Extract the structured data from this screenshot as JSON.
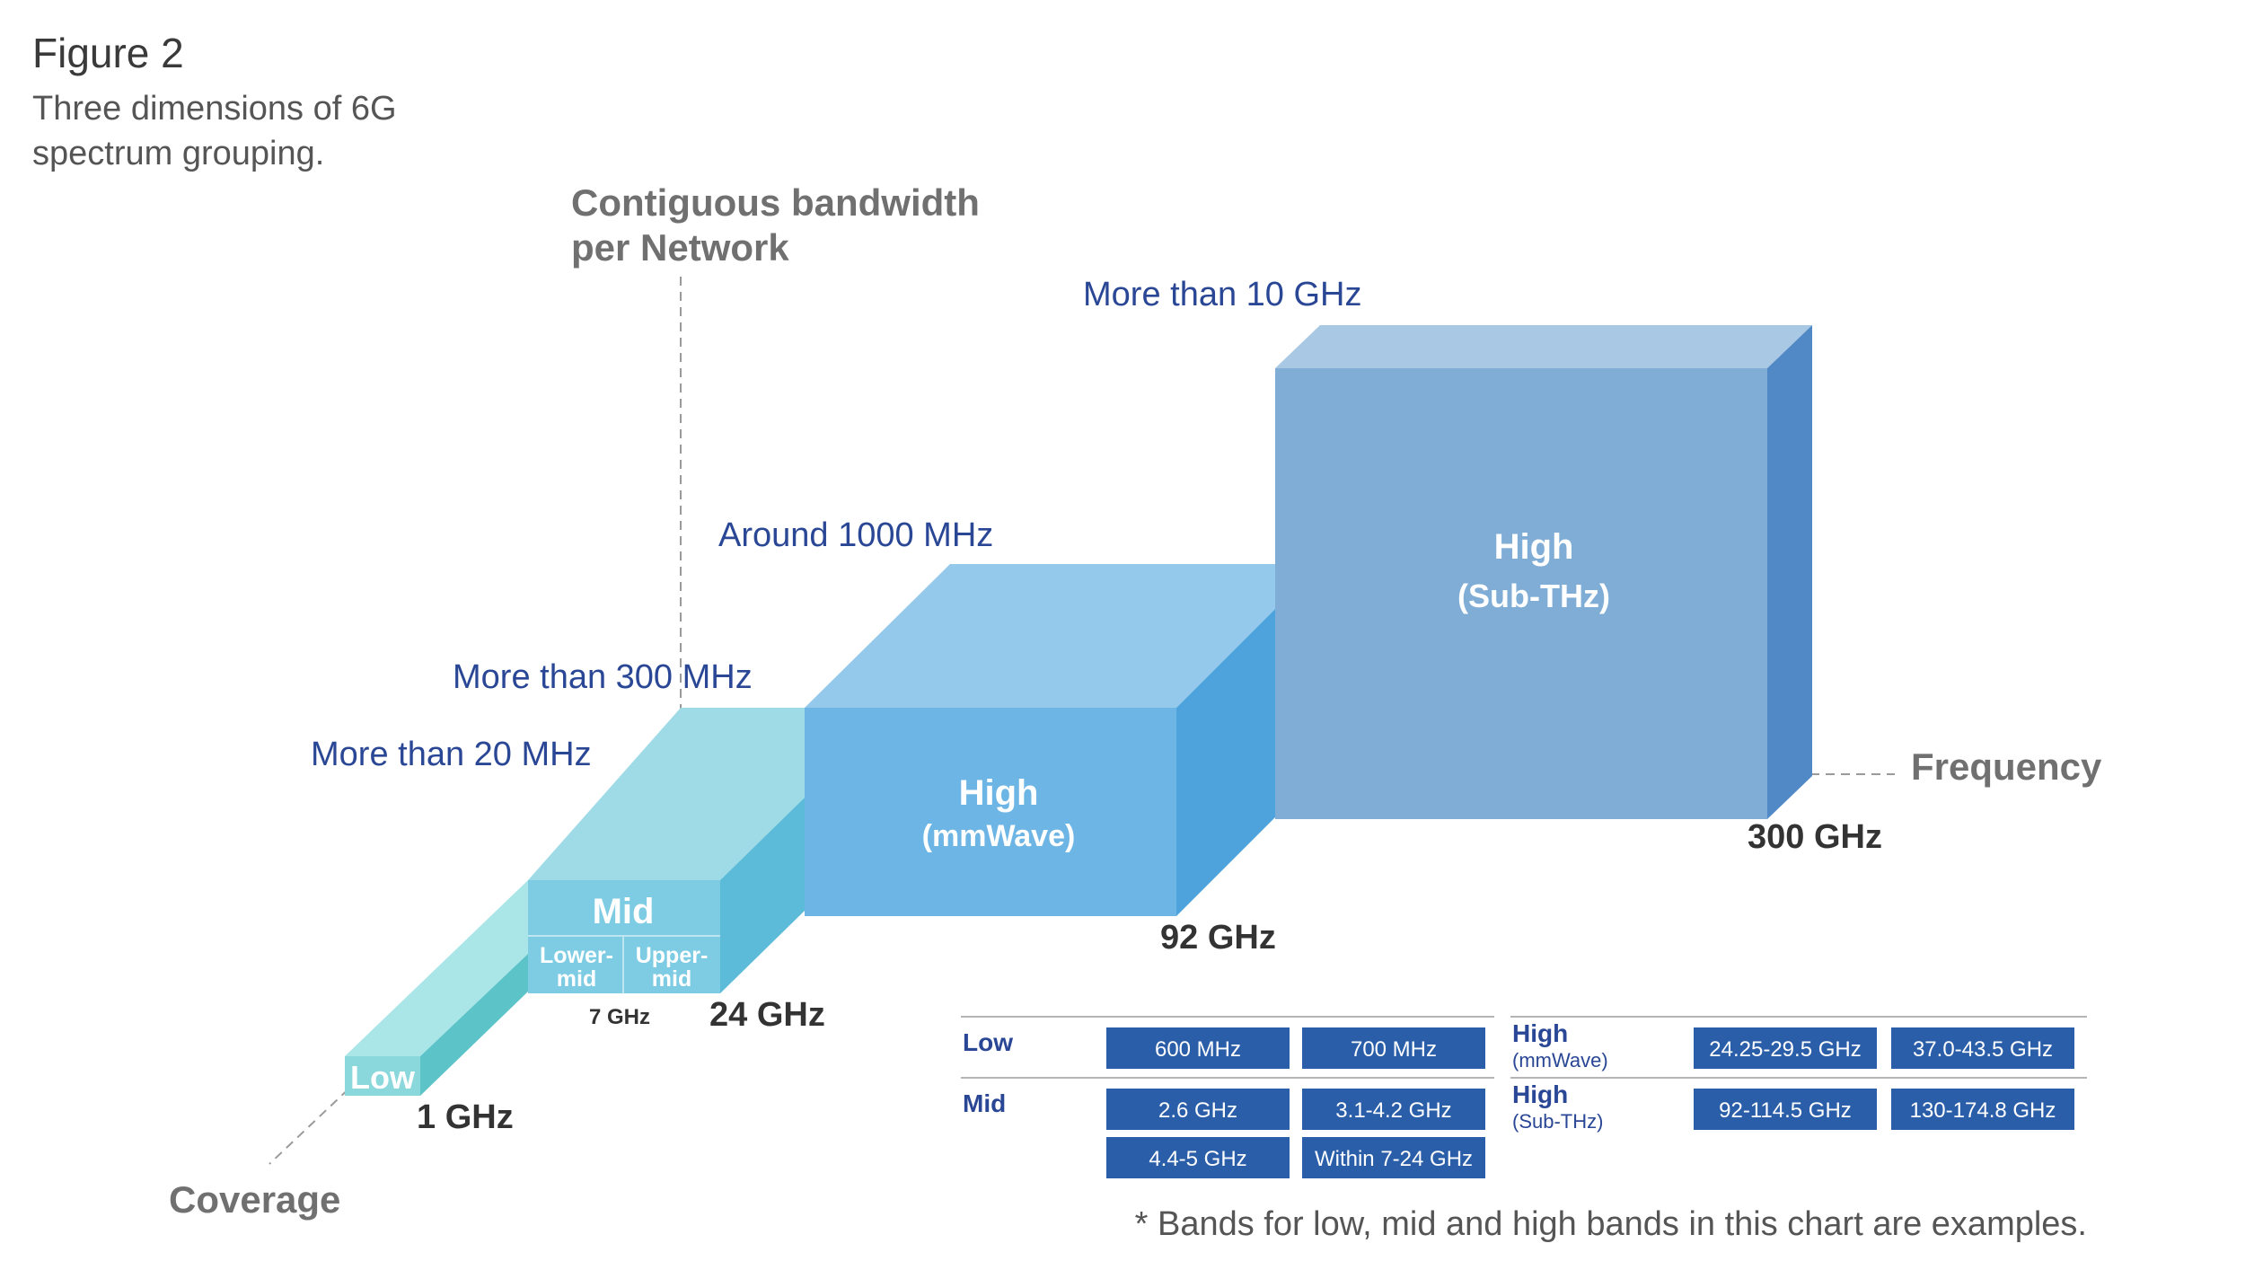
{
  "header": {
    "title": "Figure 2",
    "subtitle": "Three dimensions of 6G spectrum grouping."
  },
  "axes": {
    "vertical": "Contiguous bandwidth",
    "vertical_line2": "per Network",
    "horizontal": "Frequency",
    "depth": "Coverage"
  },
  "bandwidths": {
    "low": "More than 20 MHz",
    "mid": "More than 300 MHz",
    "mmwave": "Around 1000 MHz",
    "subthz": "More than 10 GHz"
  },
  "frequencies": {
    "f1": "1 GHz",
    "f7": "7 GHz",
    "f24": "24 GHz",
    "f92": "92 GHz",
    "f300": "300 GHz"
  },
  "blocks": {
    "low": "Low",
    "mid": "Mid",
    "lower_mid_1": "Lower-",
    "lower_mid_2": "mid",
    "upper_mid_1": "Upper-",
    "upper_mid_2": "mid",
    "mmwave_1": "High",
    "mmwave_2": "(mmWave)",
    "subthz_1": "High",
    "subthz_2": "(Sub-THz)"
  },
  "table": {
    "low_label": "Low",
    "low_bands": [
      "600 MHz",
      "700 MHz"
    ],
    "mid_label": "Mid",
    "mid_bands": [
      "2.6 GHz",
      "3.1-4.2 GHz",
      "4.4-5 GHz",
      "Within 7-24 GHz"
    ],
    "mmwave_label": "High",
    "mmwave_sub": "(mmWave)",
    "mmwave_bands": [
      "24.25-29.5 GHz",
      "37.0-43.5 GHz"
    ],
    "subthz_label": "High",
    "subthz_sub": "(Sub-THz)",
    "subthz_bands": [
      "92-114.5 GHz",
      "130-174.8 GHz"
    ]
  },
  "footnote": "* Bands for low, mid and high bands in this chart are examples.",
  "colors": {
    "label_blue": "#2a4796",
    "axis_gray": "#707070",
    "badge_blue": "#2b5ea8"
  }
}
